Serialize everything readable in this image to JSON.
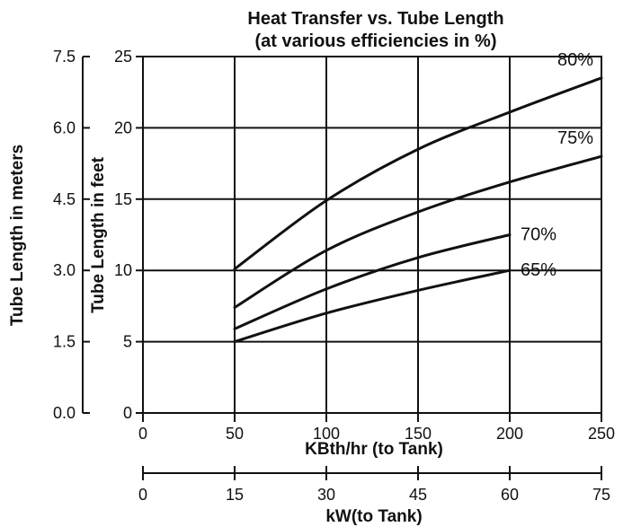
{
  "chart_data": {
    "type": "line",
    "title": "Heat Transfer vs. Tube Length",
    "subtitle": "(at various efficiencies in %)",
    "xlabel": "KBth/hr (to Tank)",
    "ylabel": "Tube Length in feet",
    "secondary_xlabel": "kW(to Tank)",
    "secondary_ylabel": "Tube Length in meters",
    "xlim": [
      0,
      250
    ],
    "ylim": [
      0,
      25
    ],
    "secondary_xlim": [
      0,
      75
    ],
    "secondary_ylim": [
      0.0,
      7.5
    ],
    "x_ticks": [
      "0",
      "50",
      "100",
      "150",
      "200",
      "250"
    ],
    "y_ticks": [
      "0",
      "5",
      "10",
      "15",
      "20",
      "25"
    ],
    "secondary_x_ticks": [
      "0",
      "15",
      "30",
      "45",
      "60",
      "75"
    ],
    "secondary_y_ticks": [
      "0.0",
      "1.5",
      "3.0",
      "4.5",
      "6.0",
      "7.5"
    ],
    "grid": true,
    "series": [
      {
        "name": "80%",
        "x": [
          50,
          100,
          150,
          200,
          250
        ],
        "y": [
          10.1,
          14.9,
          18.5,
          21.1,
          23.5
        ]
      },
      {
        "name": "75%",
        "x": [
          50,
          100,
          150,
          200,
          250
        ],
        "y": [
          7.4,
          11.4,
          14.1,
          16.2,
          18.0
        ]
      },
      {
        "name": "70%",
        "x": [
          50,
          100,
          150,
          200
        ],
        "y": [
          5.9,
          8.7,
          10.9,
          12.5
        ]
      },
      {
        "name": "65%",
        "x": [
          50,
          100,
          150,
          200
        ],
        "y": [
          5.0,
          7.0,
          8.6,
          10.0
        ]
      }
    ]
  }
}
